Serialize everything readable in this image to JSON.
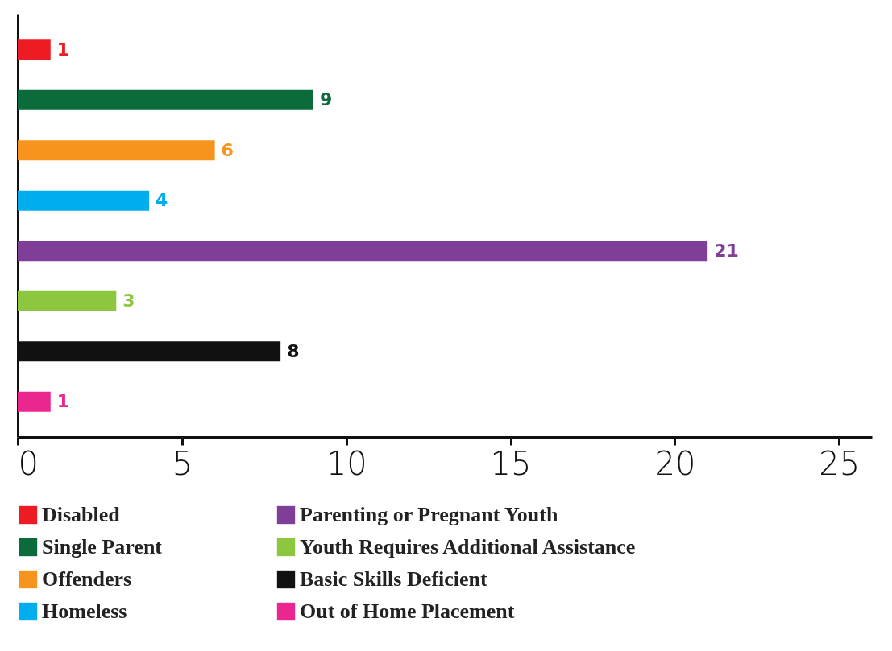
{
  "chart_data": {
    "type": "bar",
    "orientation": "horizontal",
    "categories": [
      null,
      null,
      null,
      null,
      null,
      null,
      null,
      null
    ],
    "series": [
      {
        "name": "Disabled",
        "color": "#ed1c24",
        "values": [
          1,
          null,
          null,
          null,
          null,
          null,
          null,
          null
        ]
      },
      {
        "name": "Single Parent",
        "color": "#0b6b3a",
        "values": [
          null,
          9,
          null,
          null,
          null,
          null,
          null,
          null
        ]
      },
      {
        "name": "Offenders",
        "color": "#f7941d",
        "values": [
          null,
          null,
          6,
          null,
          null,
          null,
          null,
          null
        ]
      },
      {
        "name": "Homeless",
        "color": "#00aeef",
        "values": [
          null,
          null,
          null,
          4,
          null,
          null,
          null,
          null
        ]
      },
      {
        "name": "Parenting or Pregnant Youth",
        "color": "#7f3f98",
        "values": [
          null,
          null,
          null,
          null,
          21,
          null,
          null,
          null
        ]
      },
      {
        "name": "Youth Requires Additional Assistance",
        "color": "#8dc63f",
        "values": [
          null,
          null,
          null,
          null,
          null,
          3,
          null,
          null
        ]
      },
      {
        "name": "Basic Skills Deficient",
        "color": "#111111",
        "values": [
          null,
          null,
          null,
          null,
          null,
          null,
          8,
          null
        ]
      },
      {
        "name": "Out of Home Placement",
        "color": "#ec268f",
        "values": [
          null,
          null,
          null,
          null,
          null,
          null,
          null,
          1
        ]
      }
    ],
    "xlim": [
      0,
      26
    ],
    "xticks": [
      0,
      5,
      10,
      15,
      20,
      25
    ],
    "data_labels": true,
    "legend": "bottom",
    "tick_labels": "x",
    "grid": false
  }
}
